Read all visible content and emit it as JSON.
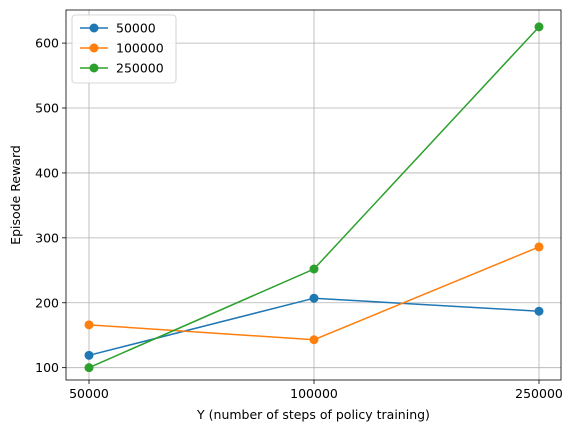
{
  "chart_data": {
    "type": "line",
    "x": [
      "50000",
      "100000",
      "250000"
    ],
    "series": [
      {
        "name": "50000",
        "color": "#1f77b4",
        "values": [
          119,
          207,
          187
        ]
      },
      {
        "name": "100000",
        "color": "#ff7f0e",
        "values": [
          166,
          143,
          286
        ]
      },
      {
        "name": "250000",
        "color": "#2ca02c",
        "values": [
          100,
          252,
          625
        ]
      }
    ],
    "xlabel": "Y (number of steps of policy training)",
    "ylabel": "Episode Reward",
    "ylim": [
      81,
      651
    ],
    "yticks": [
      100,
      200,
      300,
      400,
      500,
      600
    ],
    "grid": true,
    "legend_position": "top-left",
    "marker": "circle"
  }
}
